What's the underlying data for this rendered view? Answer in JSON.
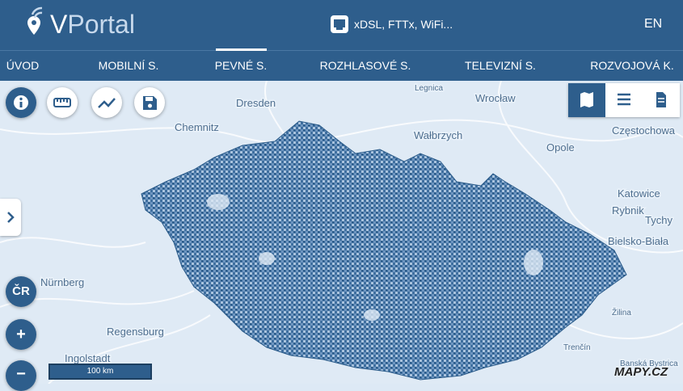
{
  "header": {
    "logo_initial": "V",
    "logo_rest": "Portal",
    "service_selector": "xDSL, FTTx, WiFi...",
    "language": "EN"
  },
  "nav": [
    "ÚVOD",
    "MOBILNÍ S.",
    "PEVNÉ S.",
    "ROZHLASOVÉ S.",
    "TELEVIZNÍ S.",
    "ROZVOJOVÁ K."
  ],
  "map": {
    "places": [
      "Dresden",
      "Legnica",
      "Wrocław",
      "Chemnitz",
      "Wałbrzych",
      "Opole",
      "Częstochowa",
      "Katowice",
      "Rybnik",
      "Tychy",
      "Bielsko-Biała",
      "Nürnberg",
      "Regensburg",
      "Ingolstadt",
      "Žilina",
      "Trenčín",
      "Banská Bystrica"
    ],
    "controls": {
      "country": "ČR",
      "zoom_in": "+",
      "zoom_out": "−"
    },
    "scale": "100 km",
    "attribution": "MAPY.CZ"
  }
}
